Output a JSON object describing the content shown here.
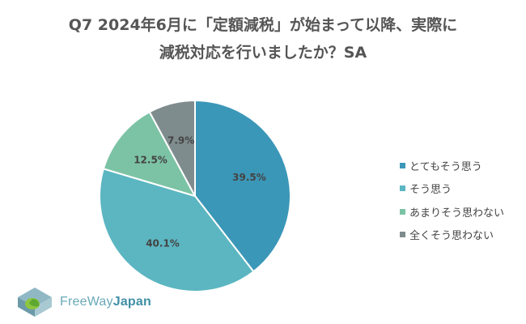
{
  "chart_data": {
    "type": "pie",
    "title_lines": [
      "Q7 2024年6月に「定額減税」が始まって以降、実際に",
      "減税対応を行いましたか？SA"
    ],
    "slices": [
      {
        "label": "とてもそう思う",
        "value": 39.5,
        "display": "39.5%",
        "color": "#3b97b8"
      },
      {
        "label": "そう思う",
        "value": 40.1,
        "display": "40.1%",
        "color": "#5bb6c1"
      },
      {
        "label": "あまりそう思わない",
        "value": 12.5,
        "display": "12.5%",
        "color": "#7cc3a5"
      },
      {
        "label": "全くそう思わない",
        "value": 7.9,
        "display": "7.9%",
        "color": "#7f8c8d"
      }
    ],
    "start_angle": "top (12 o'clock)",
    "direction": "clockwise",
    "legend_position": "right"
  },
  "logo": {
    "text_light": "FreeWay",
    "text_bold": "Japan"
  }
}
